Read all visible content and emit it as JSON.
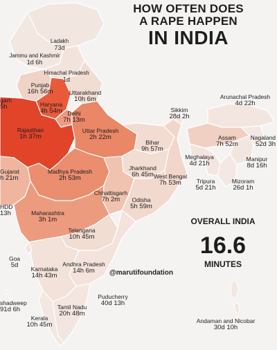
{
  "title": {
    "line1": "HOW OFTEN DOES",
    "line2": "A RAPE HAPPEN",
    "line3": "IN INDIA"
  },
  "overall": {
    "heading": "OVERALL INDIA",
    "value": "16.6",
    "unit": "MINUTES"
  },
  "handle": "@marutifoundation",
  "colors": {
    "background": "#f4f3f2",
    "land_light": "#f3e4dd",
    "land_mid": "#f0b9a4",
    "land_warm": "#eb8a6b",
    "land_hot": "#e2452a",
    "border": "#ffffff"
  },
  "regions": {
    "ladakh": {
      "name": "Ladakh",
      "value": "73d"
    },
    "jammu_kashmir": {
      "name": "Jammu and Kashmir",
      "value": "1d 6h"
    },
    "himachal": {
      "name": "Himachal Pradesh",
      "value": "1d"
    },
    "punjab": {
      "name": "Punjab",
      "value": "16h 56m"
    },
    "uttarakhand": {
      "name": "Uttarakhand",
      "value": "10h 6m"
    },
    "haryana": {
      "name": "Haryana",
      "value": "4h 54m"
    },
    "delhi": {
      "name": "Delhi",
      "value": "7h 13m"
    },
    "chandigarh": {
      "name": "garh",
      "value": "5h"
    },
    "rajasthan": {
      "name": "Rajasthan",
      "value": "1h 37m"
    },
    "uttar_pradesh": {
      "name": "Uttar Pradesh",
      "value": "2h 22m"
    },
    "sikkim": {
      "name": "Sikkim",
      "value": "28d 2h"
    },
    "arunachal": {
      "name": "Arunachal Pradesh",
      "value": "4d 22h"
    },
    "assam": {
      "name": "Assam",
      "value": "7h 52m"
    },
    "nagaland": {
      "name": "Nagaland",
      "value": "52d 3h"
    },
    "bihar": {
      "name": "Bihar",
      "value": "9h 57m"
    },
    "meghalaya": {
      "name": "Meghalaya",
      "value": "4d 21h"
    },
    "manipur": {
      "name": "Manipur",
      "value": "8d 16h"
    },
    "gujarat": {
      "name": "Gujarat",
      "value": "h 21m"
    },
    "madhya_pradesh": {
      "name": "Madhya Pradesh",
      "value": "2h 53m"
    },
    "jharkhand": {
      "name": "Jharkhand",
      "value": "6h 45m"
    },
    "west_bengal": {
      "name": "West Bengal",
      "value": "7h 53m"
    },
    "tripura": {
      "name": "Tripura",
      "value": "5d 21h"
    },
    "mizoram": {
      "name": "Mizoram",
      "value": "26d 1h"
    },
    "chhattisgarh": {
      "name": "Chhattisgarh",
      "value": "7h 2m"
    },
    "odisha": {
      "name": "Odisha",
      "value": "5h 59m"
    },
    "dnhdd": {
      "name": "HDD",
      "value": "13h"
    },
    "maharashtra": {
      "name": "Maharashtra",
      "value": "3h 1m"
    },
    "telangana": {
      "name": "Telangana",
      "value": "10h 45m"
    },
    "goa": {
      "name": "Goa",
      "value": "5d"
    },
    "karnataka": {
      "name": "Karnataka",
      "value": "14h 43m"
    },
    "andhra_pradesh": {
      "name": "Andhra Pradesh",
      "value": "14h 6m"
    },
    "lakshadweep": {
      "name": "shadweep",
      "value": "91d 6h"
    },
    "tamil_nadu": {
      "name": "Tamil Nadu",
      "value": "20h 48m"
    },
    "puducherry": {
      "name": "Puducherry",
      "value": "40d 13h"
    },
    "kerala": {
      "name": "Kerala",
      "value": "10h 45m"
    },
    "andaman": {
      "name": "Andaman and Nicobar",
      "value": "30d 10h"
    }
  }
}
